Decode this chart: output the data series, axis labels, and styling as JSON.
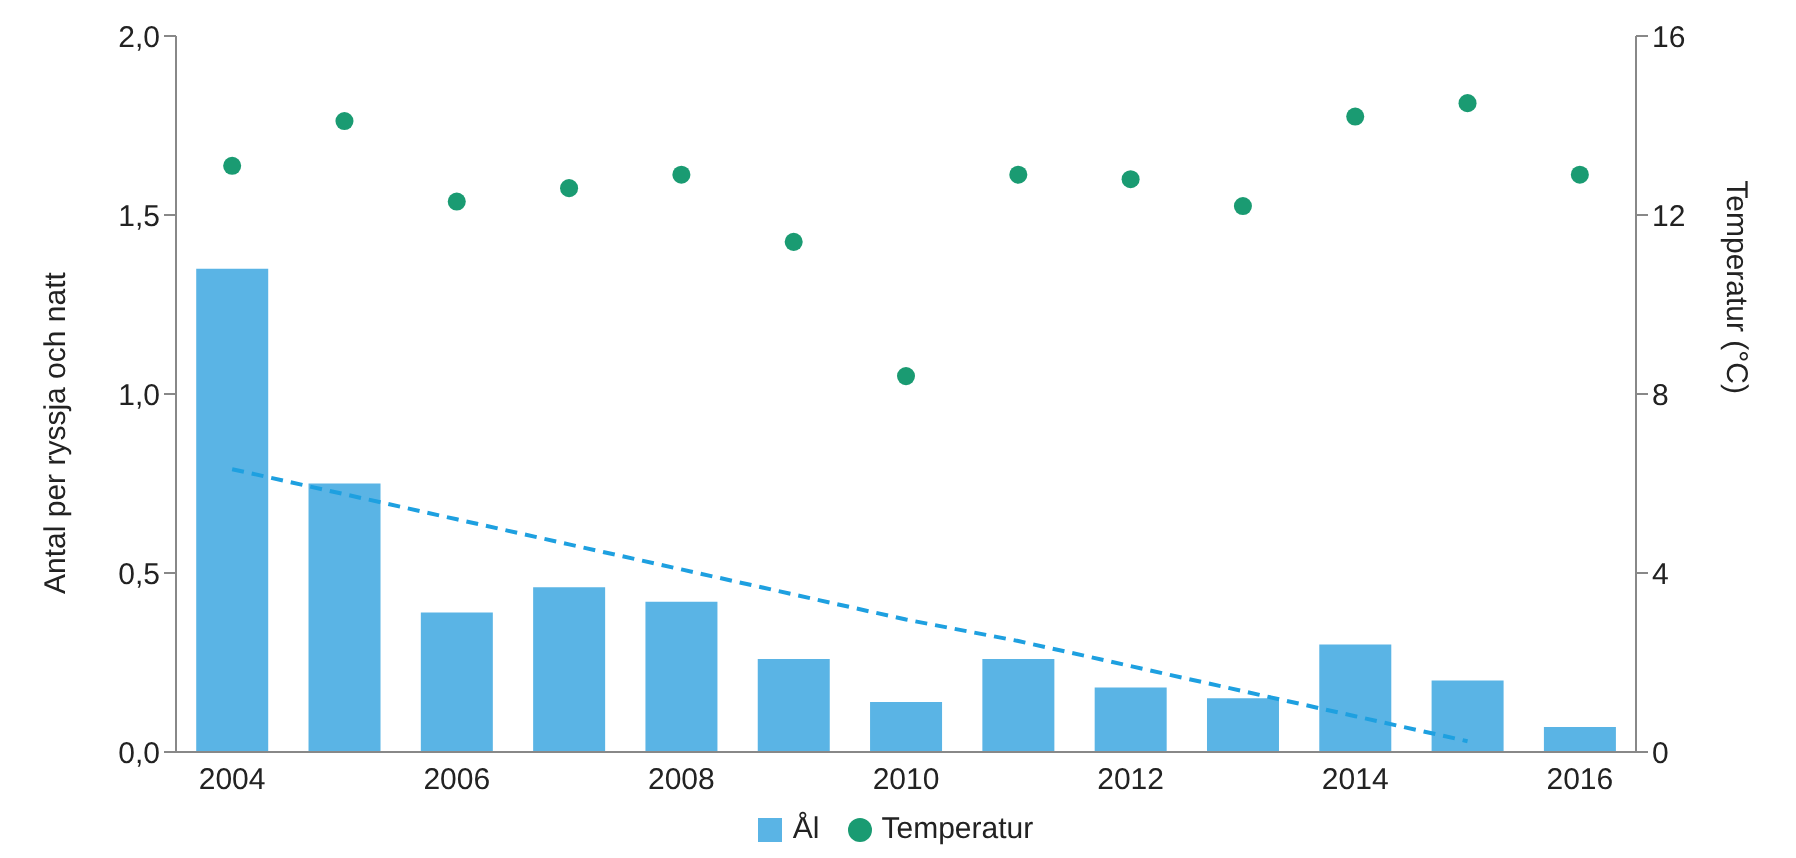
{
  "chart_data": {
    "type": "bar",
    "xlabel": null,
    "ylabel": "Antal per ryssja och natt",
    "y2label": "Temperatur (°C)",
    "categories": [
      "2004",
      null,
      "2006",
      null,
      "2008",
      null,
      "2010",
      null,
      "2012",
      null,
      "2014",
      null,
      "2016"
    ],
    "series": [
      {
        "name": "Ål",
        "color": "#5ab4e5",
        "values": [
          1.35,
          0.75,
          0.39,
          0.46,
          0.42,
          0.26,
          0.14,
          0.26,
          0.18,
          0.15,
          0.3,
          0.2,
          0.07
        ]
      },
      {
        "name": "Temperatur",
        "type": "scatter",
        "axis": "y2",
        "color": "#1a9b72",
        "marker": "circle",
        "values": [
          13.1,
          14.1,
          12.3,
          12.6,
          12.9,
          11.4,
          8.4,
          12.9,
          12.8,
          12.2,
          14.2,
          14.5,
          12.9
        ]
      },
      {
        "type": "line",
        "color": "#1ea0e0",
        "line_style": "dashed",
        "marker": "none",
        "values": [
          0.79,
          0.72,
          0.65,
          0.58,
          0.51,
          0.44,
          0.37,
          0.31,
          0.24,
          0.17,
          0.1,
          0.03,
          null
        ]
      }
    ],
    "ylim": [
      0,
      2
    ],
    "yticks": [
      {
        "value": 0,
        "label": "0,0"
      },
      {
        "value": 0.5,
        "label": "0,5"
      },
      {
        "value": 1,
        "label": "1,0"
      },
      {
        "value": 1.5,
        "label": "1,5"
      },
      {
        "value": 2,
        "label": "2,0"
      }
    ],
    "y2lim": [
      0,
      16
    ],
    "y2ticks": [
      0,
      4,
      8,
      12,
      16
    ],
    "grid": false,
    "legend": "bottom"
  }
}
